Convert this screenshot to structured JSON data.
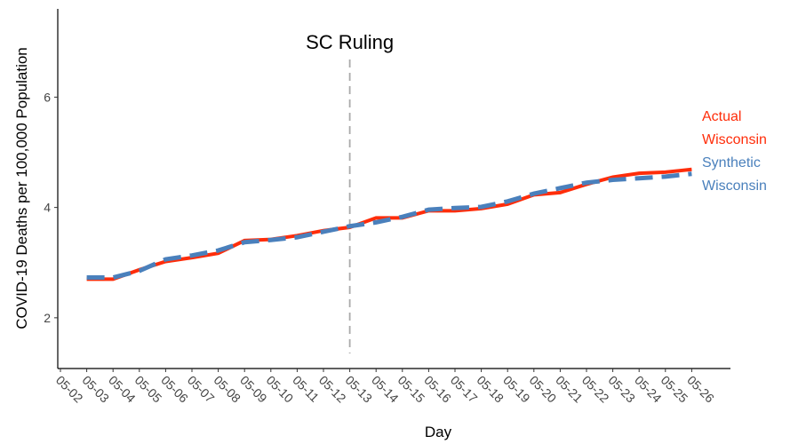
{
  "chart_data": {
    "type": "line",
    "x_label": "Day",
    "y_label": "COVID-19 Deaths per 100,000 Population",
    "categories": [
      "05-02",
      "05-03",
      "05-04",
      "05-05",
      "05-06",
      "05-07",
      "05-08",
      "05-09",
      "05-10",
      "05-11",
      "05-12",
      "05-13",
      "05-14",
      "05-15",
      "05-16",
      "05-17",
      "05-18",
      "05-19",
      "05-20",
      "05-21",
      "05-22",
      "05-23",
      "05-24",
      "05-25",
      "05-26"
    ],
    "series": [
      {
        "name": "Actual Wisconsin",
        "color": "#ff2d0a",
        "dash": false,
        "values": [
          null,
          2.7,
          2.7,
          2.87,
          3.02,
          3.09,
          3.17,
          3.4,
          3.42,
          3.49,
          3.58,
          3.64,
          3.81,
          3.81,
          3.94,
          3.94,
          3.98,
          4.06,
          4.23,
          4.27,
          4.42,
          4.55,
          4.62,
          4.64,
          4.69
        ]
      },
      {
        "name": "Synthetic Wisconsin",
        "color": "#4a80bc",
        "dash": true,
        "values": [
          null,
          2.73,
          2.73,
          2.85,
          3.06,
          3.13,
          3.22,
          3.37,
          3.41,
          3.46,
          3.56,
          3.66,
          3.73,
          3.83,
          3.96,
          3.99,
          4.01,
          4.11,
          4.25,
          4.35,
          4.45,
          4.5,
          4.53,
          4.56,
          4.61
        ]
      }
    ],
    "annotation": {
      "x": "05-13",
      "text": "SC Ruling"
    },
    "ylim": [
      1.08,
      7.6
    ],
    "yticks": [
      2,
      4,
      6
    ],
    "grid": false
  }
}
